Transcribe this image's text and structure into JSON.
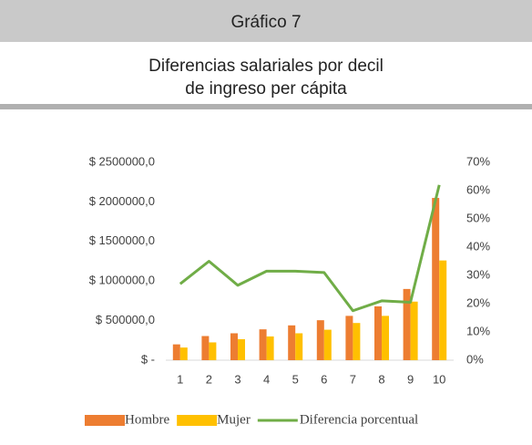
{
  "header": {
    "label": "Gráfico 7"
  },
  "chart_data": {
    "type": "bar",
    "title": [
      "Diferencias salariales por decil",
      "de ingreso per cápita"
    ],
    "categories": [
      "1",
      "2",
      "3",
      "4",
      "5",
      "6",
      "7",
      "8",
      "9",
      "10"
    ],
    "series": [
      {
        "name": "Hombre",
        "color": "#ed7d31",
        "values": [
          200000,
          305000,
          340000,
          390000,
          440000,
          505000,
          560000,
          680000,
          900000,
          2050000
        ]
      },
      {
        "name": "Mujer",
        "color": "#ffc000",
        "values": [
          160000,
          225000,
          265000,
          300000,
          340000,
          385000,
          470000,
          560000,
          740000,
          1260000
        ]
      },
      {
        "name": "Diferencia porcentual",
        "color": "#70ad47",
        "type": "line",
        "axis": "y2",
        "values": [
          27,
          35,
          26.5,
          31.5,
          31.5,
          31,
          17.5,
          21,
          20.5,
          62
        ]
      }
    ],
    "ylim": [
      0,
      2500000
    ],
    "yticks": [
      {
        "value": 0,
        "label": "$ -"
      },
      {
        "value": 500000,
        "label": "$ 500000,0"
      },
      {
        "value": 1000000,
        "label": "$ 1000000,0"
      },
      {
        "value": 1500000,
        "label": "$ 1500000,0"
      },
      {
        "value": 2000000,
        "label": "$ 2000000,0"
      },
      {
        "value": 2500000,
        "label": "$ 2500000,0"
      }
    ],
    "y2lim": [
      0,
      70
    ],
    "y2ticks": [
      {
        "value": 0,
        "label": "0%"
      },
      {
        "value": 10,
        "label": "10%"
      },
      {
        "value": 20,
        "label": "20%"
      },
      {
        "value": 30,
        "label": "30%"
      },
      {
        "value": 40,
        "label": "40%"
      },
      {
        "value": 50,
        "label": "50%"
      },
      {
        "value": 60,
        "label": "60%"
      },
      {
        "value": 70,
        "label": "70%"
      }
    ],
    "legend": "bottom"
  }
}
